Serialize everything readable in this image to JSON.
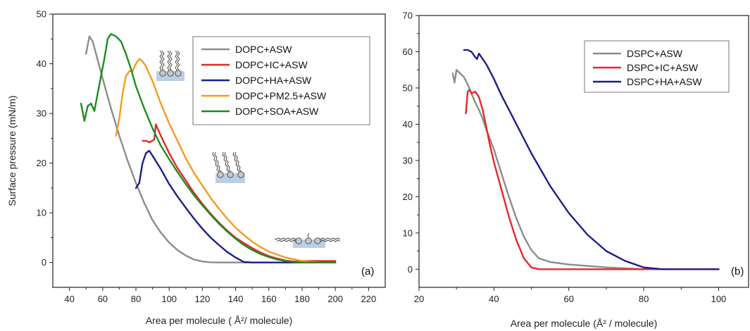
{
  "chart_data": [
    {
      "type": "line",
      "panel_label": "(a)",
      "xlabel": "Area per molecule ( Å²/ molecule)",
      "ylabel": "Surface pressure (mN/m)",
      "xlim": [
        30,
        230
      ],
      "ylim": [
        -5,
        50
      ],
      "xticks": [
        40,
        60,
        80,
        100,
        120,
        140,
        160,
        180,
        200,
        220
      ],
      "yticks": [
        0,
        10,
        20,
        30,
        40,
        50
      ],
      "legend_position": "top-right",
      "series": [
        {
          "name": "DOPC+ASW",
          "color": "#8c8c8c",
          "x": [
            50,
            52,
            54,
            56,
            60,
            65,
            70,
            75,
            80,
            85,
            90,
            95,
            100,
            105,
            110,
            115,
            120,
            125,
            130,
            140,
            160,
            180,
            200
          ],
          "y": [
            42,
            45.5,
            44.5,
            42,
            37,
            31,
            25.5,
            20.5,
            16,
            12,
            8.5,
            6,
            4,
            2.5,
            1.4,
            0.6,
            0.2,
            0.05,
            0,
            0,
            0,
            0,
            0
          ]
        },
        {
          "name": "DOPC+IC+ASW",
          "color": "#e82727",
          "x": [
            84,
            86,
            88,
            90,
            91,
            92,
            95,
            100,
            105,
            110,
            115,
            120,
            125,
            130,
            135,
            140,
            145,
            150,
            155,
            160,
            165,
            170,
            175,
            180,
            190,
            200
          ],
          "y": [
            24.5,
            24.5,
            24.2,
            24.5,
            24.8,
            27.8,
            25.5,
            22,
            19,
            16.5,
            14,
            11.8,
            9.8,
            8,
            6.4,
            5,
            3.9,
            2.9,
            2,
            1.3,
            0.8,
            0.4,
            0.2,
            0.3,
            0.3,
            0.3
          ]
        },
        {
          "name": "DOPC+HA+ASW",
          "color": "#1c1c8c",
          "x": [
            80,
            82,
            84,
            86,
            88,
            90,
            95,
            100,
            105,
            110,
            115,
            120,
            125,
            130,
            135,
            140,
            145,
            150,
            160,
            180,
            200
          ],
          "y": [
            15,
            16,
            20,
            22,
            22.5,
            21.5,
            18.8,
            15.8,
            13.3,
            11,
            8.8,
            6.8,
            5,
            3.5,
            2.1,
            1,
            0.1,
            0,
            0,
            0,
            0
          ]
        },
        {
          "name": "DOPC+PM2.5+ASW",
          "color": "#f59a1e",
          "x": [
            68,
            70,
            72,
            74,
            76,
            78,
            80,
            82,
            84,
            86,
            88,
            90,
            95,
            100,
            105,
            110,
            115,
            120,
            125,
            130,
            135,
            140,
            145,
            150,
            155,
            160,
            170,
            180,
            190,
            200
          ],
          "y": [
            25.5,
            29,
            34,
            37.5,
            38.5,
            38.5,
            40,
            41,
            40.5,
            39.5,
            38,
            36.5,
            32,
            28,
            24.5,
            21,
            18,
            15.5,
            13,
            10.8,
            8.8,
            7,
            5.5,
            4.2,
            3.1,
            2.2,
            1,
            0.3,
            0,
            0
          ]
        },
        {
          "name": "DOPC+SOA+ASW",
          "color": "#1e8c1e",
          "x": [
            47,
            49,
            51,
            53,
            55,
            57,
            59,
            61,
            63,
            65,
            68,
            71,
            74,
            77,
            80,
            85,
            90,
            95,
            100,
            105,
            110,
            115,
            120,
            125,
            130,
            135,
            140,
            145,
            150,
            155,
            160,
            165,
            170,
            175,
            180,
            190,
            200
          ],
          "y": [
            32,
            28.5,
            31.5,
            32,
            30.5,
            34,
            37.5,
            41,
            45,
            46,
            45.5,
            44.5,
            42,
            39,
            35.5,
            31,
            27,
            23.5,
            20.8,
            18.2,
            15.8,
            13.5,
            11.5,
            9.6,
            7.8,
            6.2,
            4.8,
            3.5,
            2.5,
            1.7,
            1.1,
            0.6,
            0.3,
            0.1,
            0,
            0,
            0
          ]
        }
      ]
    },
    {
      "type": "line",
      "panel_label": "(b)",
      "xlabel": "Area per molecule (Å² / molecule)",
      "ylabel": "",
      "xlim": [
        20,
        108
      ],
      "ylim": [
        -5,
        70
      ],
      "xticks": [
        20,
        40,
        60,
        80,
        100
      ],
      "yticks": [
        0,
        10,
        20,
        30,
        40,
        50,
        60,
        70
      ],
      "legend_position": "top-right",
      "series": [
        {
          "name": "DSPC+ASW",
          "color": "#8c8c8c",
          "x": [
            29,
            29.5,
            30,
            31,
            32,
            33,
            34,
            35,
            36,
            37,
            38,
            40,
            42,
            44,
            46,
            48,
            50,
            52,
            55,
            60,
            65,
            70,
            80,
            90,
            100
          ],
          "y": [
            54,
            51.5,
            55,
            54,
            53,
            51,
            48.5,
            46,
            44,
            41.5,
            38.5,
            33,
            26.5,
            20,
            14,
            9,
            5.3,
            3,
            2,
            1.3,
            0.9,
            0.5,
            0,
            0,
            0
          ]
        },
        {
          "name": "DSPC+IC+ASW",
          "color": "#e82727",
          "x": [
            32.5,
            33,
            33.5,
            34,
            35,
            36,
            37,
            38,
            39,
            40,
            42,
            44,
            46,
            48,
            50,
            52,
            55,
            60,
            70,
            80,
            90,
            100
          ],
          "y": [
            43,
            49,
            49.5,
            48.5,
            49,
            47.5,
            44,
            39,
            34,
            29.5,
            22,
            14.5,
            8,
            3,
            0.5,
            0,
            0,
            0,
            0,
            0,
            0,
            0
          ]
        },
        {
          "name": "DSPC+HA+ASW",
          "color": "#1c1c8c",
          "x": [
            32,
            33,
            34,
            35,
            35.5,
            36,
            37,
            38,
            40,
            42,
            45,
            48,
            50,
            55,
            60,
            65,
            70,
            75,
            80,
            85,
            90,
            100
          ],
          "y": [
            60.5,
            60.5,
            60,
            58.5,
            58,
            59.5,
            58,
            56.5,
            52.5,
            48,
            42,
            36,
            32,
            23,
            15.5,
            9.5,
            5,
            2.3,
            0.5,
            0,
            0,
            0
          ]
        }
      ]
    }
  ]
}
